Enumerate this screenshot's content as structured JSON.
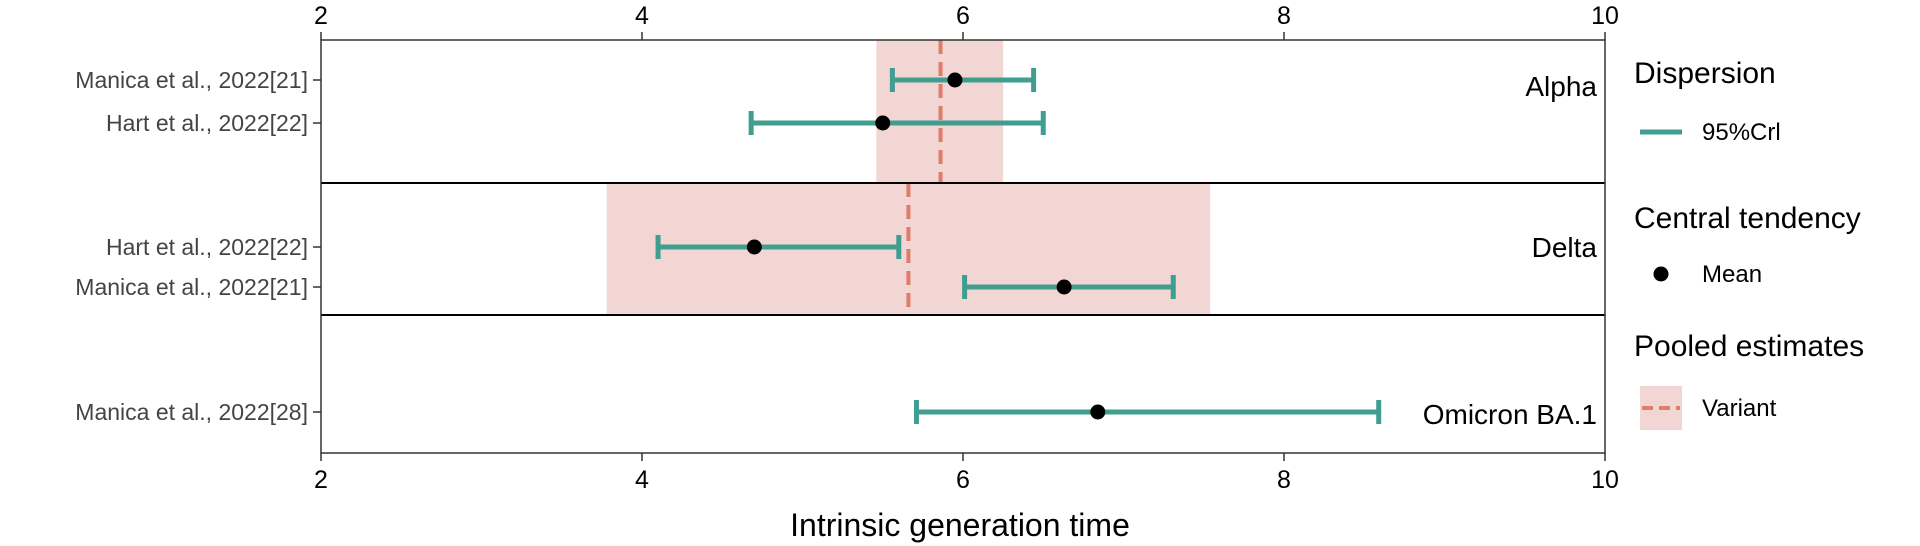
{
  "chart_data": {
    "type": "forest",
    "xlabel": "Intrinsic generation time",
    "xlim": [
      2,
      10
    ],
    "xticks": [
      2,
      4,
      6,
      8,
      10
    ],
    "colors": {
      "interval": "#3f9e8f",
      "mean": "#000000",
      "pooled_line": "#e07c6c",
      "pooled_band": "#f1d6d3"
    },
    "panels": [
      {
        "label": "Alpha",
        "pooled": {
          "mean": 5.86,
          "lower": 5.46,
          "upper": 6.25
        },
        "rows": [
          {
            "study": "Manica et al., 2022[21]",
            "mean": 5.95,
            "lower": 5.56,
            "upper": 6.44
          },
          {
            "study": "Hart et al., 2022[22]",
            "mean": 5.5,
            "lower": 4.68,
            "upper": 6.5
          }
        ]
      },
      {
        "label": "Delta",
        "pooled": {
          "mean": 5.66,
          "lower": 3.78,
          "upper": 7.54
        },
        "rows": [
          {
            "study": "Hart et al., 2022[22]",
            "mean": 4.7,
            "lower": 4.1,
            "upper": 5.6
          },
          {
            "study": "Manica et al., 2022[21]",
            "mean": 6.63,
            "lower": 6.01,
            "upper": 7.31
          }
        ]
      },
      {
        "label": "Omicron BA.1",
        "pooled": null,
        "rows": [
          {
            "study": "Manica et al., 2022[28]",
            "mean": 6.84,
            "lower": 5.71,
            "upper": 8.59
          }
        ]
      }
    ],
    "legend": {
      "groups": [
        {
          "title": "Dispersion",
          "item": "95%Crl",
          "kind": "line"
        },
        {
          "title": "Central tendency",
          "item": "Mean",
          "kind": "point"
        },
        {
          "title": "Pooled estimates",
          "item": "Variant",
          "kind": "band"
        }
      ]
    }
  }
}
